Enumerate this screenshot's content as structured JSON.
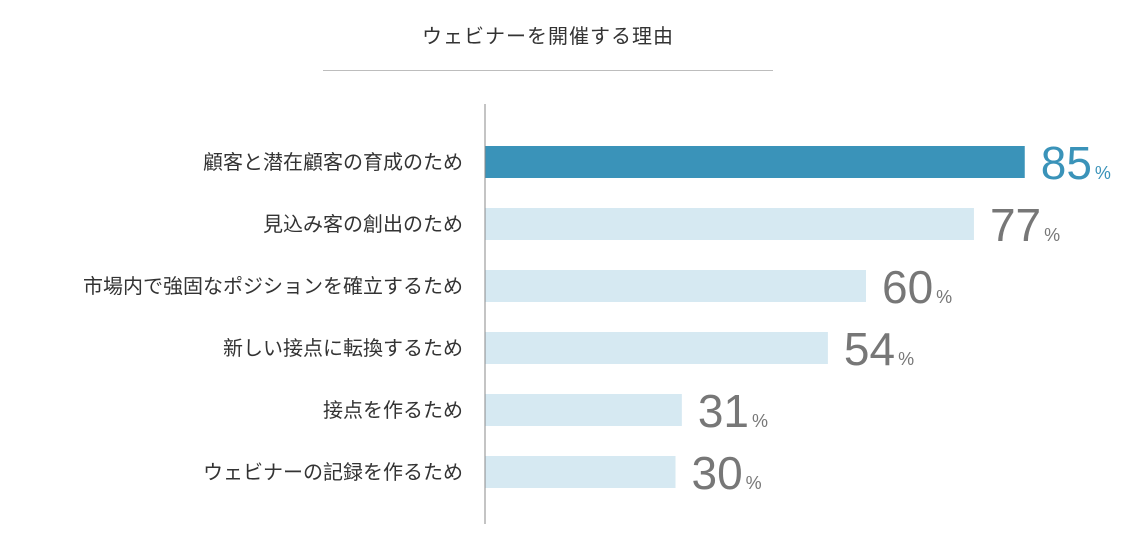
{
  "chart_data": {
    "type": "bar",
    "orientation": "horizontal",
    "title": "ウェビナーを開催する理由",
    "categories": [
      "顧客と潜在顧客の育成のため",
      "見込み客の創出のため",
      "市場内で強固なポジションを確立するため",
      "新しい接点に転換するため",
      "接点を作るため",
      "ウェビナーの記録を作るため"
    ],
    "values": [
      85,
      77,
      60,
      54,
      31,
      30
    ],
    "unit": "%",
    "xlim": [
      0,
      100
    ],
    "grid": false,
    "legend": "none",
    "colors": {
      "highlight_bar": "#3a93b9",
      "bar": "#d6e9f2",
      "highlight_label": "#3a93b9",
      "label": "#777777",
      "axis": "#888888"
    }
  }
}
